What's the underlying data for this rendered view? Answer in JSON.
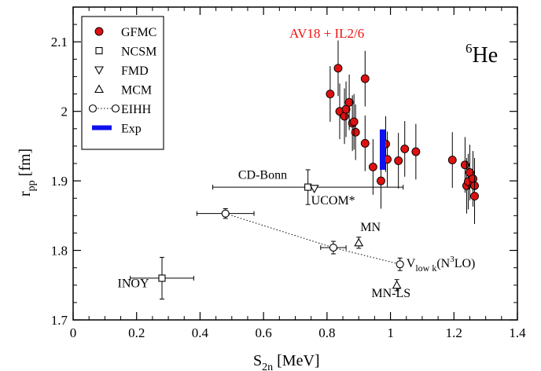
{
  "chart_data": {
    "type": "scatter",
    "xlabel": "S",
    "xlabel_sub": "2n",
    "xlabel_unit": " [MeV]",
    "ylabel": "r",
    "ylabel_sub": "pp",
    "ylabel_unit": " [fm]",
    "xlim": [
      0,
      1.4
    ],
    "ylim": [
      1.7,
      2.15
    ],
    "x_ticks": [
      "0",
      "0.2",
      "0.4",
      "0.6",
      "0.8",
      "1",
      "1.2",
      "1.4"
    ],
    "y_ticks": [
      "1.7",
      "1.8",
      "1.9",
      "2",
      "2.1"
    ],
    "nucleus": {
      "mass": "6",
      "symbol": "He"
    },
    "interaction_label": "AV18 + IL2/6",
    "legend_position": "top-left",
    "legend": [
      {
        "key": "gfmc",
        "label": "GFMC"
      },
      {
        "key": "ncsm",
        "label": "NCSM"
      },
      {
        "key": "fmd",
        "label": "FMD"
      },
      {
        "key": "mcm",
        "label": "MCM"
      },
      {
        "key": "eihh",
        "label": "EIHH"
      },
      {
        "key": "exp",
        "label": "Exp"
      }
    ],
    "colors": {
      "gfmc": "#dd1111",
      "exp": "#1010ee",
      "annotation": "#ee1111",
      "axis": "#000000"
    },
    "series": [
      {
        "name": "GFMC",
        "marker": "filled-circle",
        "points": [
          {
            "x": 0.81,
            "y": 2.025,
            "yerr": 0.04
          },
          {
            "x": 0.835,
            "y": 2.062,
            "yerr": 0.04
          },
          {
            "x": 0.84,
            "y": 2.0,
            "yerr": 0.04
          },
          {
            "x": 0.855,
            "y": 1.993,
            "yerr": 0.04
          },
          {
            "x": 0.86,
            "y": 2.003,
            "yerr": 0.04
          },
          {
            "x": 0.87,
            "y": 2.013,
            "yerr": 0.04
          },
          {
            "x": 0.88,
            "y": 1.983,
            "yerr": 0.04
          },
          {
            "x": 0.89,
            "y": 1.97,
            "yerr": 0.04
          },
          {
            "x": 0.885,
            "y": 1.985,
            "yerr": 0.04
          },
          {
            "x": 0.92,
            "y": 2.047,
            "yerr": 0.04
          },
          {
            "x": 0.92,
            "y": 1.954,
            "yerr": 0.04
          },
          {
            "x": 0.945,
            "y": 1.92,
            "yerr": 0.04
          },
          {
            "x": 0.97,
            "y": 1.9,
            "yerr": 0.04
          },
          {
            "x": 0.985,
            "y": 1.953,
            "yerr": 0.04
          },
          {
            "x": 0.99,
            "y": 1.931,
            "yerr": 0.04
          },
          {
            "x": 1.025,
            "y": 1.929,
            "yerr": 0.04
          },
          {
            "x": 1.045,
            "y": 1.946,
            "yerr": 0.04
          },
          {
            "x": 1.08,
            "y": 1.942,
            "yerr": 0.04
          },
          {
            "x": 1.195,
            "y": 1.93,
            "yerr": 0.04
          },
          {
            "x": 1.235,
            "y": 1.923,
            "yerr": 0.04
          },
          {
            "x": 1.24,
            "y": 1.893,
            "yerr": 0.04
          },
          {
            "x": 1.245,
            "y": 1.899,
            "yerr": 0.04
          },
          {
            "x": 1.25,
            "y": 1.912,
            "yerr": 0.04
          },
          {
            "x": 1.26,
            "y": 1.903,
            "yerr": 0.04
          },
          {
            "x": 1.265,
            "y": 1.893,
            "yerr": 0.04
          },
          {
            "x": 1.265,
            "y": 1.878,
            "yerr": 0.04
          }
        ]
      },
      {
        "name": "NCSM",
        "marker": "open-square",
        "points": [
          {
            "x": 0.74,
            "y": 1.891,
            "xerr": 0.3,
            "yerr": 0.025
          },
          {
            "x": 0.28,
            "y": 1.76,
            "xerr": 0.1,
            "yerr": 0.03
          }
        ]
      },
      {
        "name": "FMD",
        "marker": "open-triangle-down",
        "points": [
          {
            "x": 0.76,
            "y": 1.889
          }
        ]
      },
      {
        "name": "MCM",
        "marker": "open-triangle-up",
        "points": [
          {
            "x": 0.9,
            "y": 1.811,
            "yerr": 0.008
          },
          {
            "x": 1.02,
            "y": 1.75,
            "yerr": 0.008
          }
        ]
      },
      {
        "name": "EIHH",
        "marker": "open-circle-dotted-line",
        "points": [
          {
            "x": 0.48,
            "y": 1.853,
            "xerr": 0.09,
            "yerr": 0.007
          },
          {
            "x": 0.82,
            "y": 1.804,
            "xerr": 0.04,
            "yerr": 0.009
          },
          {
            "x": 1.03,
            "y": 1.78,
            "xerr": 0.008,
            "yerr": 0.009
          }
        ]
      },
      {
        "name": "Exp",
        "marker": "bar",
        "points": [
          {
            "x": 0.975,
            "y_low": 1.916,
            "y_high": 1.974
          }
        ]
      }
    ],
    "annotations": [
      {
        "text": "CD-Bonn",
        "x": 0.52,
        "y": 1.903
      },
      {
        "text": "UCOM*",
        "x": 0.75,
        "y": 1.866
      },
      {
        "text": "MN",
        "x": 0.905,
        "y": 1.828
      },
      {
        "text": "INOY",
        "x": 0.14,
        "y": 1.747
      },
      {
        "text": "MN-LS",
        "x": 0.94,
        "y": 1.733
      },
      {
        "text": "V",
        "sub": "low k",
        "extra": "(N",
        "sup": "3",
        "tail": "LO)",
        "x": 1.05,
        "y": 1.776
      }
    ]
  }
}
